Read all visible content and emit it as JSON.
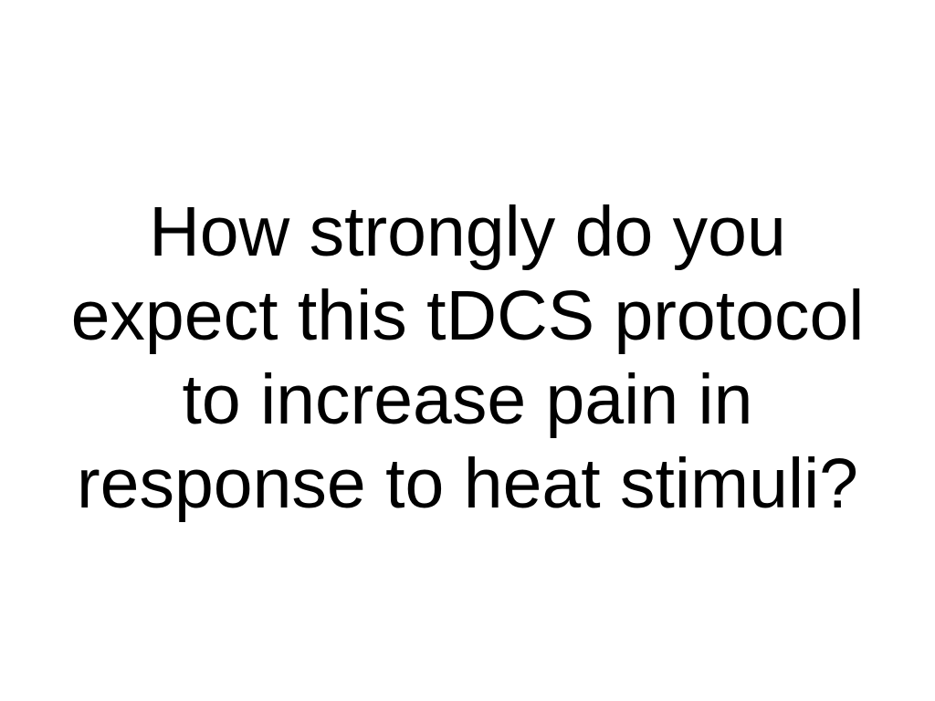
{
  "question": {
    "lines": [
      "How strongly do you",
      "expect this tDCS protocol",
      "to increase pain in",
      "response to heat stimuli?"
    ]
  },
  "colors": {
    "background": "#ffffff",
    "text": "#000000"
  }
}
